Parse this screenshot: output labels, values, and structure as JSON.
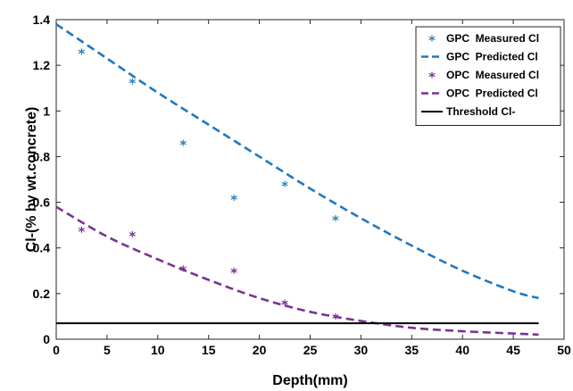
{
  "chart_data": {
    "type": "line",
    "xlabel": "Depth(mm)",
    "ylabel": "Cl-(% by wt.concrete)",
    "xlim": [
      0,
      50
    ],
    "ylim": [
      0,
      1.4
    ],
    "xticks": [
      "0",
      "5",
      "10",
      "15",
      "20",
      "25",
      "30",
      "35",
      "40",
      "45",
      "50"
    ],
    "yticks": [
      "0",
      "0.2",
      "0.4",
      "0.6",
      "0.8",
      "1",
      "1.2",
      "1.4"
    ],
    "grid": false,
    "legend_position": "top-right",
    "series": [
      {
        "name": "GPC  Measured Cl",
        "style": "markers",
        "marker": "asterisk",
        "color": "#2b83ba",
        "x": [
          2.5,
          7.5,
          12.5,
          17.5,
          22.5,
          27.5
        ],
        "y": [
          1.26,
          1.13,
          0.86,
          0.62,
          0.68,
          0.53
        ]
      },
      {
        "name": "GPC  Predicted Cl",
        "style": "dashed",
        "color": "#1f78c1",
        "x": [
          0,
          5,
          10,
          15,
          20,
          25,
          30,
          35,
          40,
          45,
          47.5
        ],
        "y": [
          1.38,
          1.23,
          1.08,
          0.94,
          0.8,
          0.66,
          0.53,
          0.41,
          0.3,
          0.21,
          0.18
        ]
      },
      {
        "name": "OPC  Measured Cl",
        "style": "markers",
        "marker": "asterisk",
        "color": "#7b3294",
        "x": [
          2.5,
          7.5,
          12.5,
          17.5,
          22.5,
          27.5
        ],
        "y": [
          0.48,
          0.46,
          0.31,
          0.3,
          0.16,
          0.1
        ]
      },
      {
        "name": "OPC  Predicted Cl",
        "style": "dashed",
        "color": "#7b3294",
        "x": [
          0,
          5,
          10,
          15,
          20,
          25,
          30,
          35,
          40,
          45,
          47.5
        ],
        "y": [
          0.58,
          0.45,
          0.35,
          0.26,
          0.18,
          0.12,
          0.08,
          0.05,
          0.035,
          0.025,
          0.02
        ]
      },
      {
        "name": "Threshold Cl-",
        "style": "solid",
        "color": "#000000",
        "x": [
          0,
          47.5
        ],
        "y": [
          0.07,
          0.07
        ]
      }
    ]
  }
}
